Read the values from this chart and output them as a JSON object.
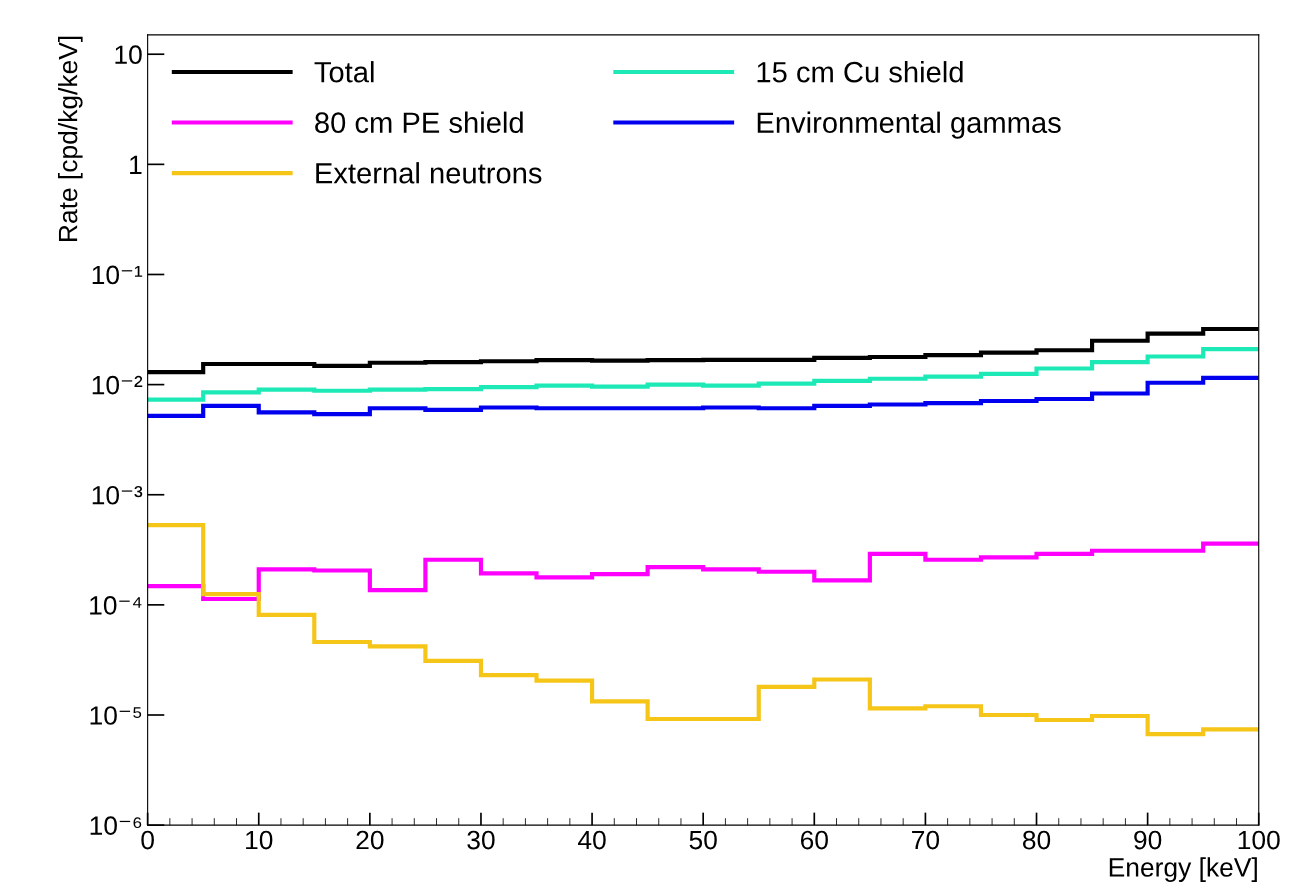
{
  "chart_data": {
    "type": "histogram",
    "xlabel": "Energy [keV]",
    "ylabel": "Rate [cpd/kg/keV]",
    "bins": [
      0,
      5,
      10,
      15,
      20,
      25,
      30,
      35,
      40,
      45,
      50,
      55,
      60,
      65,
      70,
      75,
      80,
      85,
      90,
      95,
      100
    ],
    "series": [
      {
        "name": "Total",
        "color": "#000000",
        "values": [
          0.013,
          0.0154,
          0.0154,
          0.0148,
          0.0158,
          0.016,
          0.0163,
          0.0167,
          0.0165,
          0.0167,
          0.0168,
          0.0168,
          0.0175,
          0.0178,
          0.0185,
          0.0195,
          0.0205,
          0.025,
          0.029,
          0.032
        ]
      },
      {
        "name": "15 cm Cu shield",
        "color": "#1de9b6",
        "values": [
          0.0073,
          0.0085,
          0.009,
          0.0088,
          0.009,
          0.0091,
          0.0095,
          0.0098,
          0.0096,
          0.01,
          0.0098,
          0.0102,
          0.0108,
          0.0113,
          0.0118,
          0.0125,
          0.014,
          0.016,
          0.018,
          0.021
        ]
      },
      {
        "name": "80 cm PE shield",
        "color": "#ff00ff",
        "values": [
          0.000148,
          0.000113,
          0.00021,
          0.000205,
          0.000136,
          0.000257,
          0.000193,
          0.000178,
          0.00019,
          0.00022,
          0.00021,
          0.0002,
          0.000167,
          0.00029,
          0.000257,
          0.00027,
          0.00029,
          0.00031,
          0.00031,
          0.00036
        ]
      },
      {
        "name": "Environmental gammas",
        "color": "#0000ee",
        "values": [
          0.0052,
          0.0064,
          0.0056,
          0.0054,
          0.0061,
          0.0059,
          0.0062,
          0.0061,
          0.0061,
          0.0061,
          0.0062,
          0.0061,
          0.0064,
          0.0066,
          0.0068,
          0.0071,
          0.0074,
          0.0083,
          0.0104,
          0.0115
        ]
      },
      {
        "name": "External neutrons",
        "color": "#f5c518",
        "values": [
          0.00053,
          0.000125,
          8.1e-05,
          4.6e-05,
          4.2e-05,
          3.1e-05,
          2.3e-05,
          2.05e-05,
          1.33e-05,
          9.2e-06,
          9.2e-06,
          1.8e-05,
          2.1e-05,
          1.15e-05,
          1.2e-05,
          1e-05,
          9e-06,
          9.8e-06,
          6.7e-06,
          7.4e-06
        ]
      }
    ],
    "log": "y",
    "xlim": [
      0,
      100
    ],
    "xticks": [
      0,
      10,
      20,
      30,
      40,
      50,
      60,
      70,
      80,
      90,
      100
    ],
    "ylim": [
      1e-06,
      15
    ],
    "yticks": [
      {
        "value": 1e-06,
        "label": "10⁻⁶"
      },
      {
        "value": 1e-05,
        "label": "10⁻⁵"
      },
      {
        "value": 0.0001,
        "label": "10⁻⁴"
      },
      {
        "value": 0.001,
        "label": "10⁻³"
      },
      {
        "value": 0.01,
        "label": "10⁻²"
      },
      {
        "value": 0.1,
        "label": "10⁻¹"
      },
      {
        "value": 1,
        "label": "1"
      },
      {
        "value": 10,
        "label": "10"
      }
    ],
    "grid": false,
    "legend": "top left"
  }
}
